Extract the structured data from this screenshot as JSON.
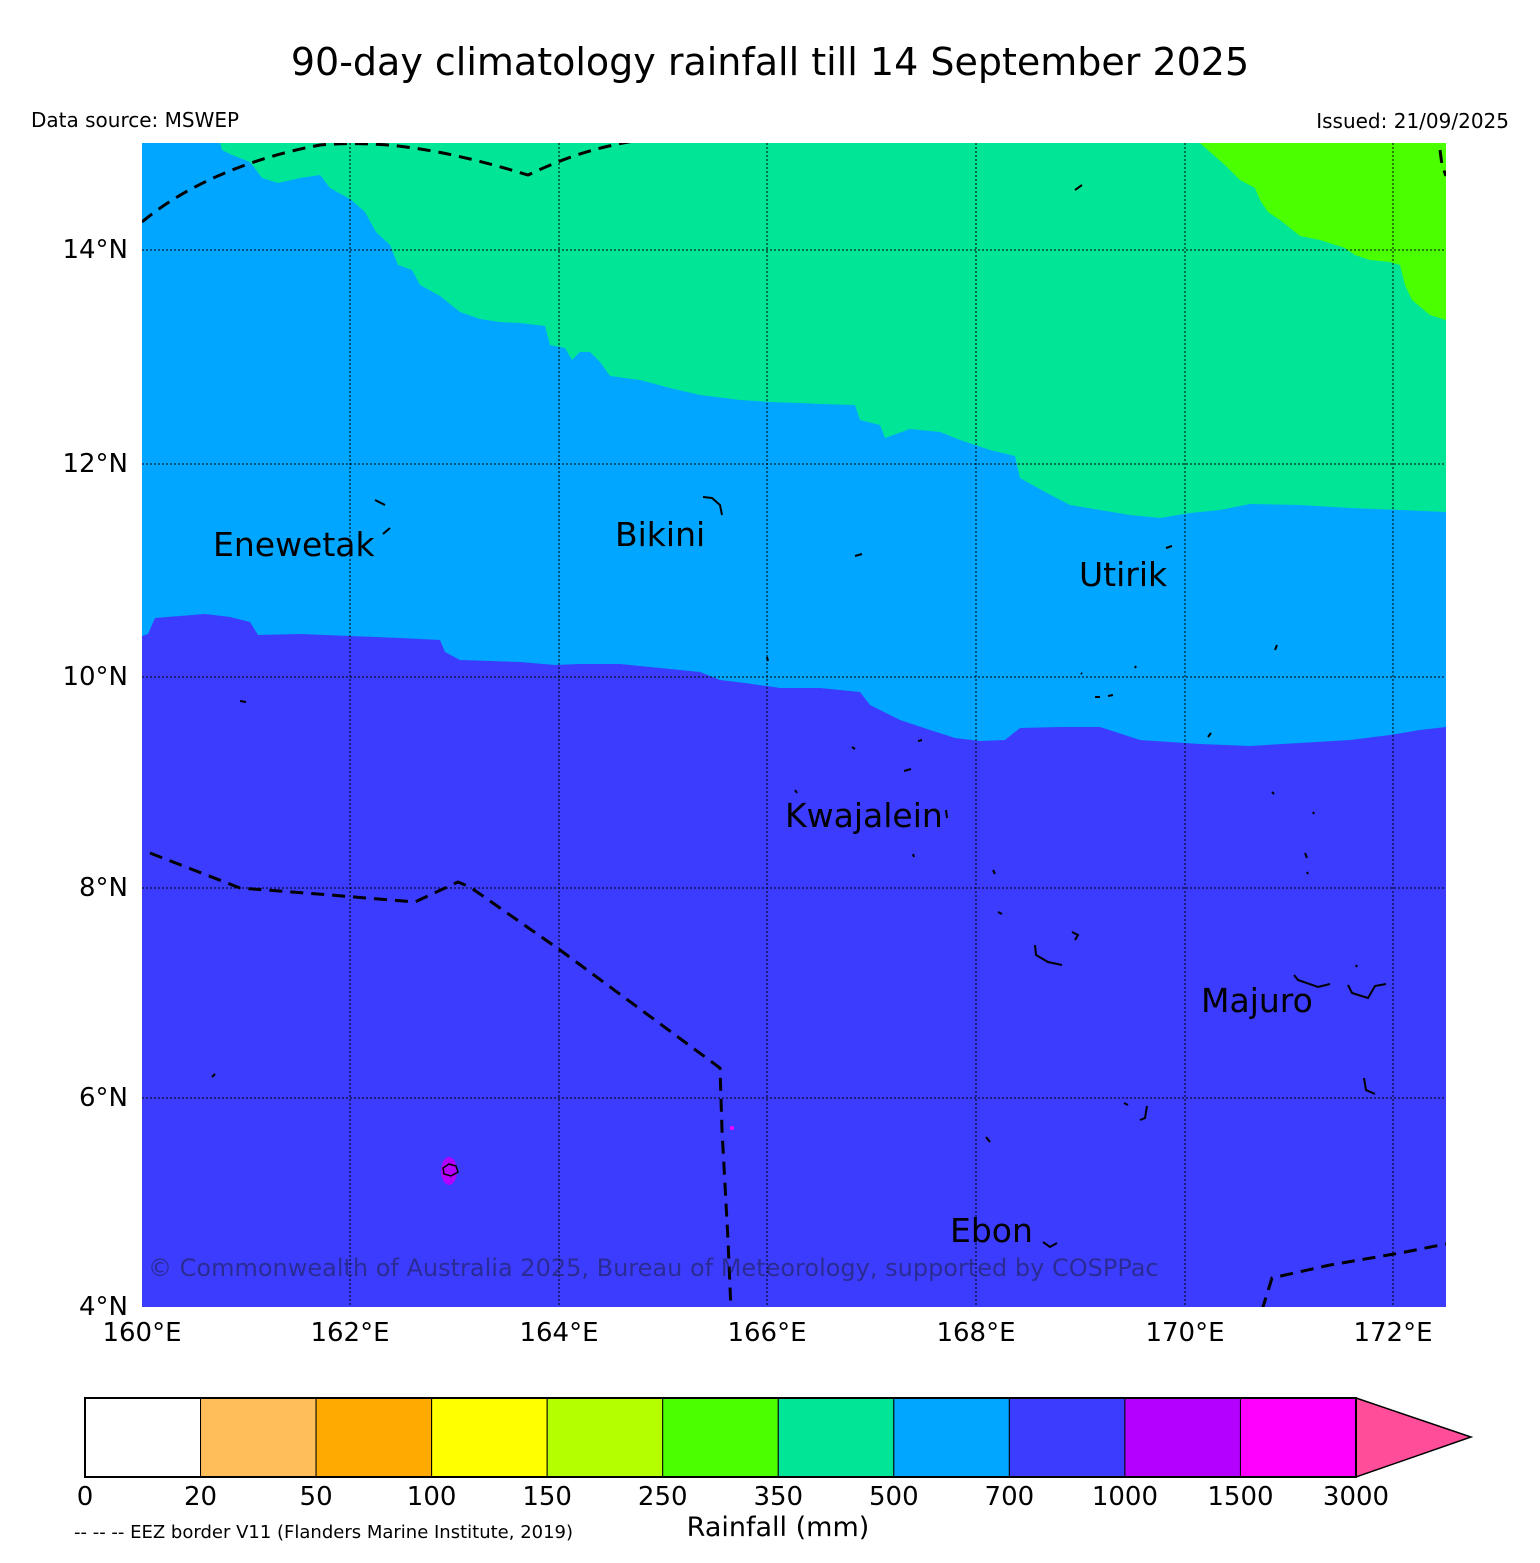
{
  "header": {
    "title": "90-day climatology rainfall till 14 September 2025",
    "source": "Data source: MSWEP",
    "issued": "Issued: 21/09/2025"
  },
  "map": {
    "lon_range": [
      160,
      172.5
    ],
    "lat_range": [
      4,
      15
    ],
    "lat_ticks": [
      "14°N",
      "12°N",
      "10°N",
      "8°N",
      "6°N",
      "4°N"
    ],
    "lon_ticks": [
      "160°E",
      "162°E",
      "164°E",
      "166°E",
      "168°E",
      "170°E",
      "172°E"
    ],
    "places": [
      {
        "name": "Enewetak",
        "lon": 161.7,
        "lat": 11.2
      },
      {
        "name": "Bikini",
        "lon": 165.2,
        "lat": 11.3
      },
      {
        "name": "Utirik",
        "lon": 169.4,
        "lat": 10.9
      },
      {
        "name": "Kwajalein",
        "lon": 167.0,
        "lat": 8.6
      },
      {
        "name": "Majuro",
        "lon": 170.7,
        "lat": 6.9
      },
      {
        "name": "Ebon",
        "lon": 168.1,
        "lat": 4.7
      }
    ],
    "copyright": "© Commonwealth of Australia 2025, Bureau of Meteorology, supported by COSPPac",
    "zones": [
      {
        "range": "250-350",
        "color": "#4cff00"
      },
      {
        "range": "350-500",
        "color": "#00e696"
      },
      {
        "range": "500-700",
        "color": "#00a6ff"
      },
      {
        "range": "700-1000",
        "color": "#3c3cff"
      },
      {
        "range": "1000-1500",
        "color": "#b400ff"
      }
    ]
  },
  "colorbar": {
    "label": "Rainfall (mm)",
    "ticks": [
      "0",
      "20",
      "50",
      "100",
      "150",
      "250",
      "350",
      "500",
      "700",
      "1000",
      "1500",
      "3000"
    ],
    "colors": [
      "#ffffff",
      "#ffbe5a",
      "#ffaa00",
      "#ffff00",
      "#b4ff00",
      "#4cff00",
      "#00e696",
      "#00a6ff",
      "#3c3cff",
      "#b400ff",
      "#ff00ff"
    ],
    "extend_color": "#ff4d9a",
    "eez_note": "-- -- -- EEZ border V11 (Flanders Marine Institute, 2019)"
  }
}
